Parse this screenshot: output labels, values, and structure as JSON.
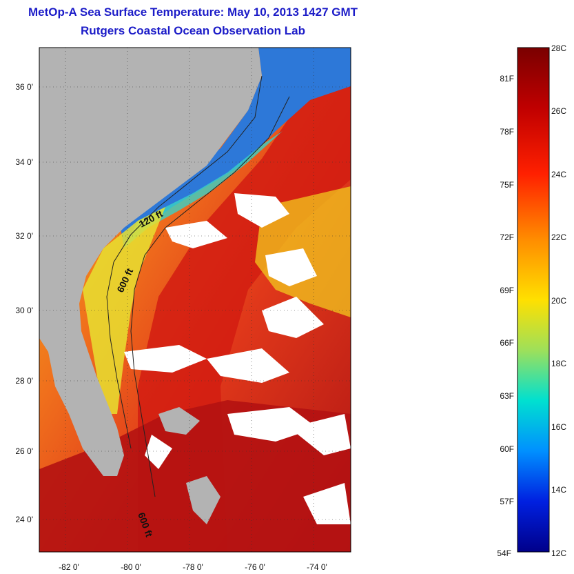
{
  "title": "MetOp-A Sea Surface Temperature:  May 10, 2013 1427 GMT",
  "subtitle": "Rutgers Coastal Ocean Observation Lab",
  "lat_labels": [
    "36 0'",
    "34 0'",
    "32 0'",
    "30 0'",
    "28 0'",
    "26 0'",
    "24 0'"
  ],
  "lon_labels": [
    "-82 0'",
    "-80 0'",
    "-78 0'",
    "-76 0'",
    "-74 0'"
  ],
  "contour_labels": [
    "120 ft",
    "600 ft",
    "600 ft"
  ],
  "colorbar": {
    "celsius": [
      "28C",
      "26C",
      "24C",
      "22C",
      "20C",
      "18C",
      "16C",
      "14C",
      "12C"
    ],
    "fahrenheit": [
      "81F",
      "78F",
      "75F",
      "72F",
      "69F",
      "66F",
      "63F",
      "60F",
      "57F",
      "54F"
    ]
  },
  "colors": {
    "title": "#1c1cc8",
    "land": "#b3b3b3"
  }
}
